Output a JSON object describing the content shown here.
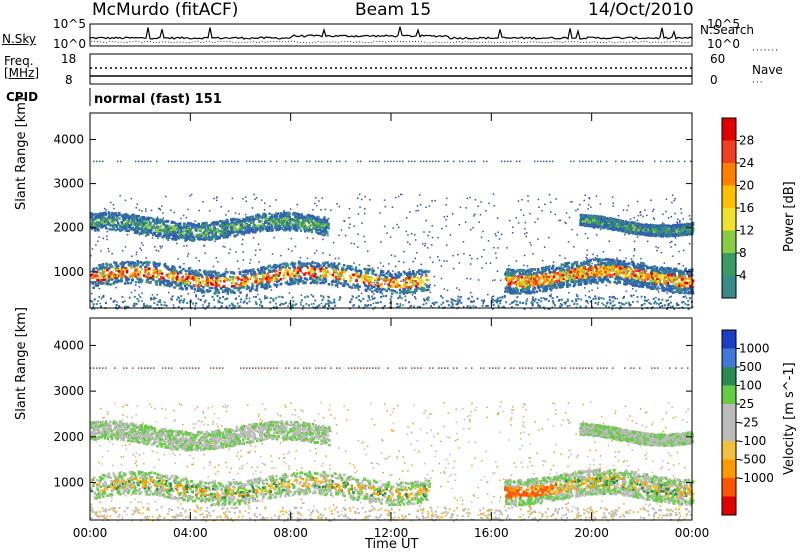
{
  "header": {
    "station": "McMurdo (fitACF)",
    "beam": "Beam 15",
    "date": "14/Oct/2010"
  },
  "strip_panels": {
    "nsky_label": "N.Sky",
    "nsearch_label": "N.Search",
    "noise_ticks": [
      "10^5",
      "10^0"
    ],
    "freq_label_1": "Freq.",
    "freq_label_2": "[MHz]",
    "freq_ticks": [
      "18",
      "8"
    ],
    "nave_label": "Nave",
    "nave_ticks": [
      "60",
      "0"
    ],
    "cpid_label": "CPID",
    "cpid_value": "normal (fast) 151"
  },
  "chart_data": [
    {
      "type": "heatmap",
      "name": "power",
      "ylabel": "Slant Range [km]",
      "xlabel": "Time UT",
      "x_range_hours": [
        0,
        24
      ],
      "ylim_km": [
        180,
        4600
      ],
      "y_ticks": [
        "4000",
        "3000",
        "2000",
        "1000"
      ],
      "x_ticks": [
        "00:00",
        "04:00",
        "08:00",
        "12:00",
        "16:00",
        "20:00",
        "00:00"
      ],
      "colorbar_label": "Power [dB]",
      "colorbar_ticks": [
        "28",
        "24",
        "20",
        "16",
        "12",
        "8",
        "4"
      ],
      "colorbar_colors": [
        "#e00000",
        "#f04020",
        "#ff7f00",
        "#ffc000",
        "#f0e030",
        "#88cc44",
        "#3a9a64",
        "#3a8a88",
        "#3060b0",
        "#0020f0"
      ],
      "bands": [
        {
          "t0": 0.0,
          "t1": 13.5,
          "r0": 650,
          "r1": 1150,
          "level": "strong"
        },
        {
          "t0": 0.0,
          "t1": 9.5,
          "r0": 1850,
          "r1": 2250,
          "level": "medium"
        },
        {
          "t0": 16.5,
          "t1": 24.0,
          "r0": 650,
          "r1": 1200,
          "level": "strong"
        },
        {
          "t0": 19.5,
          "t1": 24.0,
          "r0": 1950,
          "r1": 2200,
          "level": "medium"
        }
      ]
    },
    {
      "type": "heatmap",
      "name": "velocity",
      "ylabel": "Slant Range [km]",
      "xlabel": "Time UT",
      "x_range_hours": [
        0,
        24
      ],
      "ylim_km": [
        180,
        4600
      ],
      "y_ticks": [
        "4000",
        "3000",
        "2000",
        "1000"
      ],
      "x_ticks": [
        "00:00",
        "04:00",
        "08:00",
        "12:00",
        "16:00",
        "20:00",
        "00:00"
      ],
      "colorbar_label": "Velocity [m s^-1]",
      "colorbar_ticks": [
        "1000",
        "500",
        "100",
        "25",
        "-25",
        "-100",
        "-500",
        "-1000"
      ],
      "colorbar_colors": [
        "#1a3fc4",
        "#3f78d8",
        "#2a8c50",
        "#66cc44",
        "#bbbbbb",
        "#bbbbbb",
        "#f0c040",
        "#ff9900",
        "#ff5500",
        "#e00000"
      ]
    }
  ]
}
